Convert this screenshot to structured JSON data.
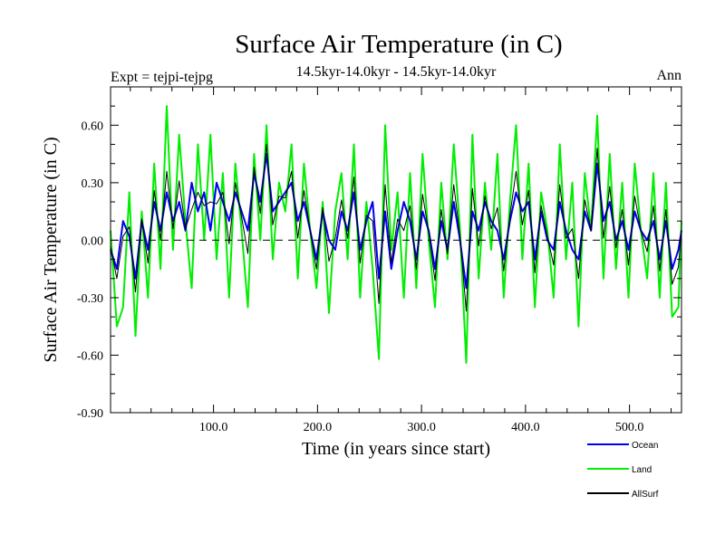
{
  "chart_data": {
    "type": "line",
    "title": "Surface Air Temperature (in C)",
    "subtitle": "14.5kyr-14.0kyr - 14.5kyr-14.0kyr",
    "left_label": "Expt = tejpi-tejpg",
    "right_label": "Ann",
    "xlabel": "Time (in years since start)",
    "ylabel": "Surface Air Temperature (in C)",
    "xlim": [
      1,
      550
    ],
    "ylim": [
      -0.9,
      0.8
    ],
    "x_ticks": [
      100,
      200,
      300,
      400,
      500
    ],
    "x_tick_labels": [
      "100.0",
      "200.0",
      "300.0",
      "400.0",
      "500.0"
    ],
    "y_ticks": [
      -0.9,
      -0.6,
      -0.3,
      0.0,
      0.3,
      0.6
    ],
    "y_tick_labels": [
      "-0.90",
      "-0.60",
      "-0.30",
      "0.00",
      "0.30",
      "0.60"
    ],
    "zero_line": "dashed",
    "legend_position": "below-right",
    "series": [
      {
        "name": "Land",
        "color": "#00ee00",
        "x": [
          1,
          7,
          13,
          19,
          25,
          31,
          37,
          43,
          49,
          55,
          61,
          67,
          73,
          79,
          85,
          91,
          97,
          103,
          109,
          115,
          121,
          127,
          133,
          139,
          145,
          151,
          157,
          163,
          169,
          175,
          181,
          187,
          193,
          199,
          205,
          211,
          217,
          223,
          229,
          235,
          241,
          247,
          253,
          259,
          265,
          271,
          277,
          283,
          289,
          295,
          301,
          307,
          313,
          319,
          325,
          331,
          337,
          343,
          349,
          355,
          361,
          367,
          373,
          379,
          385,
          391,
          397,
          403,
          409,
          415,
          421,
          427,
          433,
          439,
          445,
          451,
          457,
          463,
          469,
          475,
          481,
          487,
          493,
          499,
          505,
          511,
          517,
          523,
          529,
          535,
          541,
          547,
          550
        ],
        "values": [
          0.05,
          -0.45,
          -0.35,
          0.25,
          -0.5,
          0.15,
          -0.3,
          0.4,
          -0.15,
          0.7,
          -0.05,
          0.55,
          0.1,
          -0.25,
          0.5,
          0.0,
          0.55,
          -0.1,
          0.35,
          -0.3,
          0.4,
          0.05,
          -0.35,
          0.45,
          0.0,
          0.6,
          -0.1,
          0.3,
          0.15,
          0.5,
          -0.2,
          0.4,
          0.05,
          -0.25,
          0.2,
          -0.38,
          0.15,
          0.35,
          -0.1,
          0.5,
          -0.3,
          0.2,
          -0.15,
          -0.62,
          0.6,
          -0.05,
          0.25,
          -0.3,
          0.35,
          -0.25,
          0.45,
          0.0,
          -0.35,
          0.3,
          -0.1,
          0.5,
          0.05,
          -0.64,
          0.55,
          -0.2,
          0.3,
          -0.05,
          0.45,
          -0.3,
          0.2,
          0.6,
          -0.1,
          0.4,
          -0.35,
          0.25,
          0.05,
          -0.3,
          0.5,
          -0.1,
          0.3,
          -0.45,
          0.35,
          0.05,
          0.65,
          -0.2,
          0.45,
          -0.15,
          0.3,
          -0.3,
          0.4,
          0.05,
          -0.2,
          0.35,
          -0.3,
          0.3,
          -0.4,
          -0.35,
          0.1
        ]
      },
      {
        "name": "Ocean",
        "color": "#0000ee",
        "x": [
          1,
          7,
          13,
          19,
          25,
          31,
          37,
          43,
          49,
          55,
          61,
          67,
          73,
          79,
          85,
          91,
          97,
          103,
          109,
          115,
          121,
          127,
          133,
          139,
          145,
          151,
          157,
          163,
          169,
          175,
          181,
          187,
          193,
          199,
          205,
          211,
          217,
          223,
          229,
          235,
          241,
          247,
          253,
          259,
          265,
          271,
          277,
          283,
          289,
          295,
          301,
          307,
          313,
          319,
          325,
          331,
          337,
          343,
          349,
          355,
          361,
          367,
          373,
          379,
          385,
          391,
          397,
          403,
          409,
          415,
          421,
          427,
          433,
          439,
          445,
          451,
          457,
          463,
          469,
          475,
          481,
          487,
          493,
          499,
          505,
          511,
          517,
          523,
          529,
          535,
          541,
          547,
          550
        ],
        "values": [
          -0.05,
          -0.15,
          0.1,
          0.02,
          -0.2,
          0.1,
          -0.05,
          0.2,
          0.05,
          0.25,
          0.1,
          0.2,
          0.05,
          0.3,
          0.15,
          0.25,
          0.05,
          0.3,
          0.2,
          0.1,
          0.25,
          0.15,
          0.05,
          0.35,
          0.2,
          0.45,
          0.15,
          0.2,
          0.25,
          0.3,
          0.1,
          0.2,
          0.05,
          -0.1,
          0.15,
          0.0,
          -0.05,
          0.15,
          0.05,
          0.25,
          -0.05,
          0.1,
          0.2,
          -0.2,
          0.15,
          -0.15,
          0.05,
          0.2,
          0.1,
          -0.1,
          0.15,
          0.05,
          -0.15,
          0.1,
          -0.05,
          0.2,
          0.0,
          -0.25,
          0.15,
          0.05,
          0.2,
          0.1,
          0.05,
          -0.1,
          0.1,
          0.25,
          0.15,
          0.2,
          -0.1,
          0.15,
          0.0,
          -0.05,
          0.2,
          0.05,
          -0.05,
          -0.1,
          0.15,
          0.05,
          0.4,
          0.1,
          0.2,
          0.0,
          0.1,
          -0.05,
          0.15,
          0.05,
          0.0,
          0.1,
          -0.1,
          0.1,
          -0.15,
          -0.05,
          0.05
        ]
      },
      {
        "name": "AllSurf",
        "color": "#000000",
        "x": [
          1,
          7,
          13,
          19,
          25,
          31,
          37,
          43,
          49,
          55,
          61,
          67,
          73,
          79,
          85,
          91,
          97,
          103,
          109,
          115,
          121,
          127,
          133,
          139,
          145,
          151,
          157,
          163,
          169,
          175,
          181,
          187,
          193,
          199,
          205,
          211,
          217,
          223,
          229,
          235,
          241,
          247,
          253,
          259,
          265,
          271,
          277,
          283,
          289,
          295,
          301,
          307,
          313,
          319,
          325,
          331,
          337,
          343,
          349,
          355,
          361,
          367,
          373,
          379,
          385,
          391,
          397,
          403,
          409,
          415,
          421,
          427,
          433,
          439,
          445,
          451,
          457,
          463,
          469,
          475,
          481,
          487,
          493,
          499,
          505,
          511,
          517,
          523,
          529,
          535,
          541,
          547,
          550
        ],
        "values": [
          -0.03,
          -0.2,
          0.02,
          0.07,
          -0.27,
          0.11,
          -0.12,
          0.26,
          0.0,
          0.36,
          0.06,
          0.31,
          0.06,
          0.16,
          0.25,
          0.18,
          0.2,
          0.19,
          0.25,
          -0.02,
          0.3,
          0.12,
          -0.07,
          0.38,
          0.14,
          0.5,
          0.08,
          0.23,
          0.22,
          0.36,
          0.01,
          0.26,
          0.05,
          -0.15,
          0.17,
          -0.11,
          0.01,
          0.21,
          0.01,
          0.33,
          -0.12,
          0.13,
          0.1,
          -0.33,
          0.29,
          -0.12,
          0.11,
          0.05,
          0.18,
          -0.15,
          0.24,
          0.04,
          -0.21,
          0.16,
          -0.07,
          0.29,
          0.02,
          -0.37,
          0.27,
          -0.03,
          0.23,
          0.06,
          0.17,
          -0.16,
          0.13,
          0.36,
          0.08,
          0.26,
          -0.17,
          0.18,
          0.02,
          -0.13,
          0.29,
          0.01,
          0.06,
          -0.2,
          0.21,
          0.05,
          0.48,
          0.01,
          0.28,
          -0.04,
          0.16,
          -0.13,
          0.23,
          0.05,
          -0.06,
          0.18,
          -0.16,
          0.16,
          -0.23,
          -0.14,
          0.06
        ]
      }
    ]
  }
}
